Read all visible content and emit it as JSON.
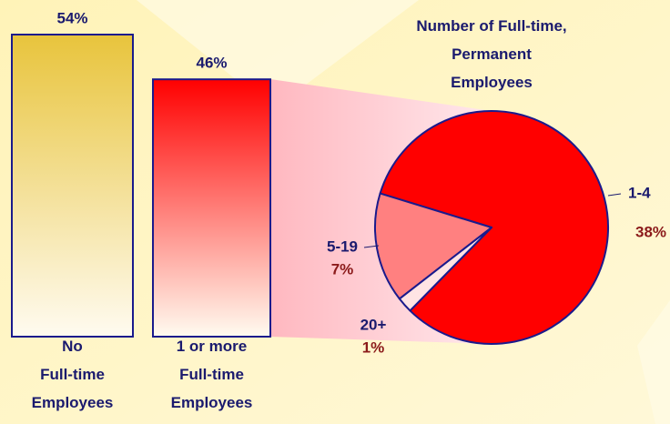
{
  "chart_data": [
    {
      "type": "bar",
      "categories": [
        "No\nFull-time\nEmployees",
        "1 or more\nFull-time\nEmployees"
      ],
      "values": [
        54,
        46
      ],
      "value_labels": [
        "54%",
        "46%"
      ],
      "colors": [
        "#e8c43c",
        "#ff0000"
      ]
    },
    {
      "type": "pie",
      "title": "Number of Full-time,\nPermanent\nEmployees",
      "categories": [
        "1-4",
        "5-19",
        "20+"
      ],
      "values": [
        38,
        7,
        1
      ],
      "value_labels": [
        "38%",
        "7%",
        "1%"
      ],
      "colors": [
        "#ff0000",
        "#ff8080",
        "#ffe4e4"
      ]
    }
  ]
}
